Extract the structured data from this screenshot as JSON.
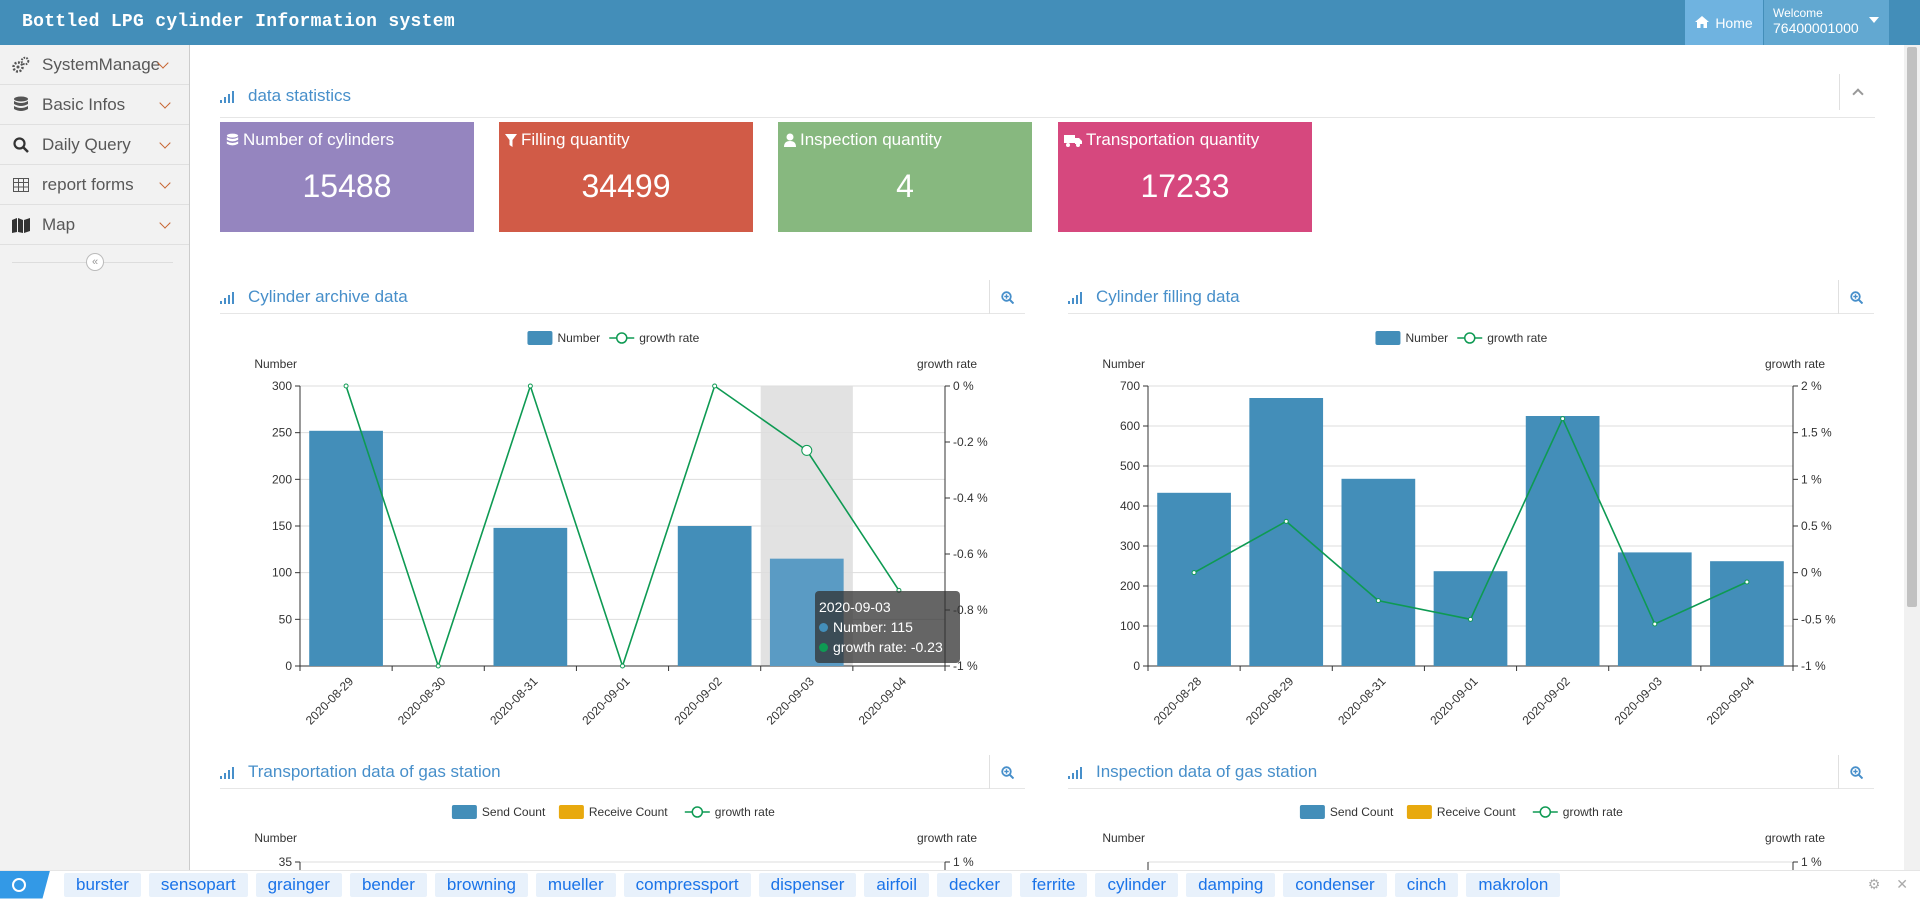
{
  "header": {
    "title": "Bottled LPG cylinder Information system",
    "home_label": "Home",
    "welcome_label": "Welcome",
    "user_id": "76400001000"
  },
  "sidebar": {
    "items": [
      {
        "label": "SystemManage",
        "icon": "gears-icon"
      },
      {
        "label": "Basic Infos",
        "icon": "database-icon"
      },
      {
        "label": "Daily Query",
        "icon": "search-icon"
      },
      {
        "label": "report forms",
        "icon": "table-icon"
      },
      {
        "label": "Map",
        "icon": "map-icon"
      }
    ]
  },
  "stats_section": {
    "title": "data statistics",
    "cards": [
      {
        "label": "Number of cylinders",
        "value": "15488",
        "color": "#9585bf",
        "icon": "database-icon"
      },
      {
        "label": "Filling quantity",
        "value": "34499",
        "color": "#d15b47",
        "icon": "filter-icon"
      },
      {
        "label": "Inspection quantity",
        "value": "4",
        "color": "#87b87f",
        "icon": "user-icon"
      },
      {
        "label": "Transportation quantity",
        "value": "17233",
        "color": "#d6487e",
        "icon": "truck-icon"
      }
    ]
  },
  "panels": {
    "archive_title": "Cylinder archive data",
    "filling_title": "Cylinder filling data",
    "transport_title": "Transportation data of gas station",
    "inspection_title": "Inspection data of gas station"
  },
  "colors": {
    "bar": "#438eb9",
    "line": "#0e9a53",
    "receive": "#e8a90e"
  },
  "tooltip": {
    "date": "2020-09-03",
    "number_text": "Number: 115",
    "growth_text": "growth rate: -0.23"
  },
  "chart_data": [
    {
      "type": "bar",
      "title": "Cylinder archive data",
      "categories": [
        "2020-08-29",
        "2020-08-30",
        "2020-08-31",
        "2020-09-01",
        "2020-09-02",
        "2020-09-03",
        "2020-09-04"
      ],
      "series": [
        {
          "name": "Number",
          "type": "bar",
          "axis": "left",
          "values": [
            252,
            0,
            148,
            0,
            150,
            115,
            0
          ]
        },
        {
          "name": "growth rate",
          "type": "line",
          "axis": "right",
          "values": [
            0,
            -1,
            0,
            -1,
            0,
            -0.23,
            -0.73
          ]
        }
      ],
      "ylabel": "Number",
      "ylim": [
        0,
        300
      ],
      "yticks": [
        0,
        50,
        100,
        150,
        200,
        250,
        300
      ],
      "y2label": "growth rate",
      "y2lim": [
        -1,
        0
      ],
      "y2ticks": [
        "-1 %",
        "-0.8 %",
        "-0.6 %",
        "-0.4 %",
        "-0.2 %",
        "0 %"
      ],
      "legend": "top-center",
      "highlight_index": 5
    },
    {
      "type": "bar",
      "title": "Cylinder filling data",
      "categories": [
        "2020-08-28",
        "2020-08-29",
        "2020-08-31",
        "2020-09-01",
        "2020-09-02",
        "2020-09-03",
        "2020-09-04"
      ],
      "series": [
        {
          "name": "Number",
          "type": "bar",
          "axis": "left",
          "values": [
            433,
            670,
            468,
            237,
            625,
            284,
            262
          ]
        },
        {
          "name": "growth rate",
          "type": "line",
          "axis": "right",
          "values": [
            0,
            0.55,
            -0.3,
            -0.5,
            1.65,
            -0.55,
            -0.1
          ]
        }
      ],
      "ylabel": "Number",
      "ylim": [
        0,
        700
      ],
      "yticks": [
        0,
        100,
        200,
        300,
        400,
        500,
        600,
        700
      ],
      "y2label": "growth rate",
      "y2lim": [
        -1,
        2
      ],
      "y2ticks": [
        "-1 %",
        "-0.5 %",
        "0 %",
        "0.5 %",
        "1 %",
        "1.5 %",
        "2 %"
      ],
      "legend": "top-center"
    },
    {
      "type": "bar",
      "title": "Transportation data of gas station",
      "legend_items": [
        "Send Count",
        "Receive Count",
        "growth rate"
      ],
      "ylabel": "Number",
      "y2label": "growth rate",
      "visible_ytick": "35",
      "visible_y2tick": "1 %"
    },
    {
      "type": "bar",
      "title": "Inspection data of gas station",
      "legend_items": [
        "Send Count",
        "Receive Count",
        "growth rate"
      ],
      "ylabel": "Number",
      "y2label": "growth rate",
      "visible_y2tick": "1 %"
    }
  ],
  "bottom_tags": [
    "burster",
    "sensopart",
    "grainger",
    "bender",
    "browning",
    "mueller",
    "compressport",
    "dispenser",
    "airfoil",
    "decker",
    "ferrite",
    "cylinder",
    "damping",
    "condenser",
    "cinch",
    "makrolon"
  ]
}
